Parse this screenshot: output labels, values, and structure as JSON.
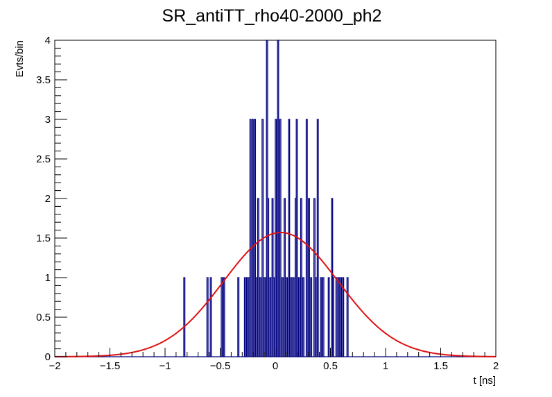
{
  "chart_data": {
    "type": "histogram",
    "title": "SR_antiTT_rho40-2000_ph2",
    "xlabel": "t [ns]",
    "ylabel": "Evts/bin",
    "xlim": [
      -2,
      2
    ],
    "ylim": [
      0,
      4
    ],
    "x_ticks": [
      -2,
      -1.5,
      -1,
      -0.5,
      0,
      0.5,
      1,
      1.5,
      2
    ],
    "x_tick_labels": [
      "−2",
      "−1.5",
      "−1",
      "−0.5",
      "0",
      "0.5",
      "1",
      "1.5",
      "2"
    ],
    "y_ticks": [
      0,
      0.5,
      1,
      1.5,
      2,
      2.5,
      3,
      3.5,
      4
    ],
    "y_tick_labels": [
      "0",
      "0.5",
      "1",
      "1.5",
      "2",
      "2.5",
      "3",
      "3.5",
      "4"
    ],
    "grid": false,
    "bin_width": 0.01,
    "series": [
      {
        "kind": "histogram",
        "color": "#000080",
        "bins": [
          [
            -0.83,
            1
          ],
          [
            -0.62,
            1
          ],
          [
            -0.59,
            1
          ],
          [
            -0.49,
            1
          ],
          [
            -0.47,
            1
          ],
          [
            -0.34,
            1
          ],
          [
            -0.28,
            1
          ],
          [
            -0.26,
            1
          ],
          [
            -0.24,
            1
          ],
          [
            -0.23,
            3
          ],
          [
            -0.21,
            3
          ],
          [
            -0.19,
            3
          ],
          [
            -0.17,
            1
          ],
          [
            -0.16,
            2
          ],
          [
            -0.14,
            1
          ],
          [
            -0.12,
            3
          ],
          [
            -0.1,
            1
          ],
          [
            -0.08,
            4
          ],
          [
            -0.07,
            2
          ],
          [
            -0.05,
            1
          ],
          [
            -0.03,
            2
          ],
          [
            -0.02,
            1
          ],
          [
            0.0,
            3
          ],
          [
            0.02,
            4
          ],
          [
            0.04,
            3
          ],
          [
            0.06,
            1
          ],
          [
            0.08,
            2
          ],
          [
            0.1,
            1
          ],
          [
            0.12,
            3
          ],
          [
            0.14,
            1
          ],
          [
            0.16,
            1
          ],
          [
            0.18,
            2
          ],
          [
            0.19,
            3
          ],
          [
            0.21,
            1
          ],
          [
            0.23,
            2
          ],
          [
            0.25,
            1
          ],
          [
            0.28,
            3
          ],
          [
            0.3,
            2
          ],
          [
            0.32,
            1
          ],
          [
            0.35,
            2
          ],
          [
            0.37,
            1
          ],
          [
            0.38,
            3
          ],
          [
            0.41,
            1
          ],
          [
            0.43,
            1
          ],
          [
            0.48,
            1
          ],
          [
            0.51,
            2
          ],
          [
            0.52,
            1
          ],
          [
            0.55,
            1
          ],
          [
            0.57,
            1
          ],
          [
            0.59,
            1
          ],
          [
            0.61,
            1
          ],
          [
            0.65,
            1
          ]
        ]
      },
      {
        "kind": "fit",
        "color": "#e01010",
        "function": "gaussian",
        "amplitude": 1.57,
        "mean": 0.05,
        "sigma": 0.52
      }
    ]
  }
}
